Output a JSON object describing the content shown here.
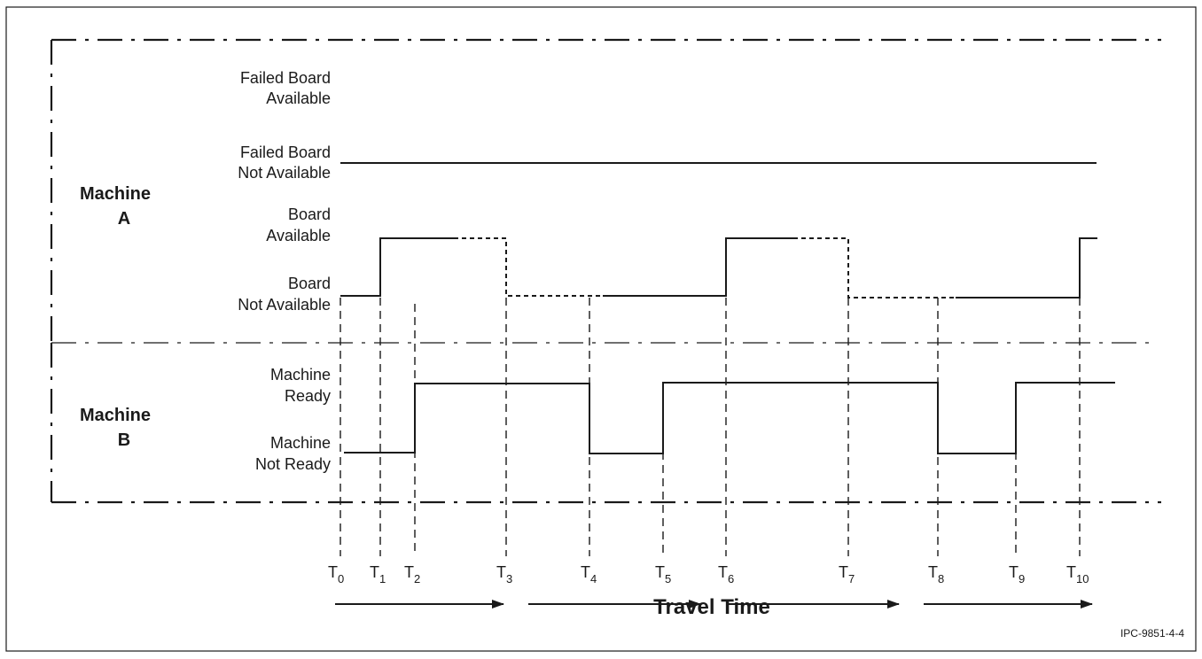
{
  "machine_a": {
    "title_line1": "Machine",
    "title_line2": "A",
    "levels": [
      {
        "line1": "Failed Board",
        "line2": "Available"
      },
      {
        "line1": "Failed Board",
        "line2": "Not Available"
      },
      {
        "line1": "Board",
        "line2": "Available"
      },
      {
        "line1": "Board",
        "line2": "Not Available"
      }
    ]
  },
  "machine_b": {
    "title_line1": "Machine",
    "title_line2": "B",
    "levels": [
      {
        "line1": "Machine",
        "line2": "Ready"
      },
      {
        "line1": "Machine",
        "line2": "Not Ready"
      }
    ]
  },
  "time_markers": [
    {
      "base": "T",
      "sub": "0"
    },
    {
      "base": "T",
      "sub": "1"
    },
    {
      "base": "T",
      "sub": "2"
    },
    {
      "base": "T",
      "sub": "3"
    },
    {
      "base": "T",
      "sub": "4"
    },
    {
      "base": "T",
      "sub": "5"
    },
    {
      "base": "T",
      "sub": "6"
    },
    {
      "base": "T",
      "sub": "7"
    },
    {
      "base": "T",
      "sub": "8"
    },
    {
      "base": "T",
      "sub": "9"
    },
    {
      "base": "T",
      "sub": "10"
    }
  ],
  "travel_label": "Travel Time",
  "figure_id": "IPC-9851-4-4",
  "colors": {
    "ink": "#1a1a1a",
    "background": "#ffffff"
  }
}
